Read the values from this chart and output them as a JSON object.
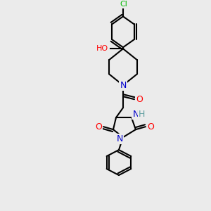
{
  "bg_color": "#ebebeb",
  "atom_colors": {
    "C": "#000000",
    "N": "#0000cc",
    "O": "#ff0000",
    "Cl": "#00bb00",
    "H": "#5f9ea0"
  },
  "bond_color": "#000000",
  "bond_width": 1.5,
  "figsize": [
    3.0,
    3.0
  ],
  "dpi": 100
}
